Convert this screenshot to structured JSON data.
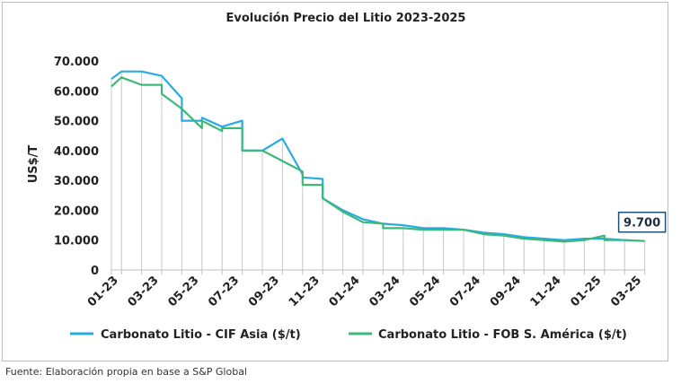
{
  "chart_data": {
    "type": "line",
    "title": "Evolución Precio del Litio 2023-2025",
    "xlabel": "",
    "ylabel": "US$/T",
    "ylim": [
      0,
      70000
    ],
    "y_ticks": [
      0,
      10000,
      20000,
      30000,
      40000,
      50000,
      60000,
      70000
    ],
    "y_tick_labels": [
      "0",
      "10.000",
      "20.000",
      "30.000",
      "40.000",
      "50.000",
      "60.000",
      "70.000"
    ],
    "x_tick_labels": [
      "01-23",
      "03-23",
      "05-23",
      "07-23",
      "09-23",
      "11-23",
      "01-24",
      "03-24",
      "05-24",
      "07-24",
      "09-24",
      "11-24",
      "01-25",
      "03-25"
    ],
    "categories": [
      "01-23",
      "02-23",
      "03-23",
      "04-23",
      "05-23",
      "06-23",
      "07-23",
      "08-23",
      "09-23",
      "10-23",
      "11-23",
      "12-23",
      "01-24",
      "02-24",
      "03-24",
      "04-24",
      "05-24",
      "06-24",
      "07-24",
      "08-24",
      "09-24",
      "10-24",
      "11-24",
      "12-24",
      "01-25",
      "02-25",
      "03-25"
    ],
    "series": [
      {
        "name": "Carbonato Litio - CIF Asia ($/t)",
        "color": "#29abe2",
        "points": [
          [
            0,
            64000
          ],
          [
            0.5,
            66500
          ],
          [
            1.5,
            66500
          ],
          [
            2.5,
            65000
          ],
          [
            3.5,
            57500
          ],
          [
            3.5,
            50000
          ],
          [
            4.5,
            50000
          ],
          [
            4.5,
            51000
          ],
          [
            5.5,
            48000
          ],
          [
            6.5,
            50000
          ],
          [
            6.5,
            40000
          ],
          [
            7.5,
            40000
          ],
          [
            8.5,
            44000
          ],
          [
            9.5,
            32000
          ],
          [
            9.5,
            31000
          ],
          [
            10.5,
            30500
          ],
          [
            10.5,
            24000
          ],
          [
            11.5,
            20000
          ],
          [
            12.5,
            17000
          ],
          [
            13.5,
            15500
          ],
          [
            14.5,
            15000
          ],
          [
            15.5,
            14000
          ],
          [
            16.5,
            14000
          ],
          [
            17.5,
            13500
          ],
          [
            18.5,
            12500
          ],
          [
            19.5,
            12000
          ],
          [
            20.5,
            11000
          ],
          [
            21.5,
            10500
          ],
          [
            22.5,
            10000
          ],
          [
            23.5,
            10500
          ],
          [
            24.5,
            10500
          ],
          [
            25.5,
            10000
          ],
          [
            26.5,
            9700
          ]
        ]
      },
      {
        "name": "Carbonato Litio - FOB S. América ($/t)",
        "color": "#3cb878",
        "points": [
          [
            0,
            61500
          ],
          [
            0.5,
            64500
          ],
          [
            1.5,
            62000
          ],
          [
            2.5,
            62000
          ],
          [
            2.5,
            59000
          ],
          [
            3.5,
            54000
          ],
          [
            4.5,
            47500
          ],
          [
            4.5,
            50000
          ],
          [
            5.5,
            46500
          ],
          [
            5.5,
            47500
          ],
          [
            6.5,
            47500
          ],
          [
            6.5,
            40000
          ],
          [
            7.5,
            40000
          ],
          [
            8.5,
            36500
          ],
          [
            9.5,
            33000
          ],
          [
            9.5,
            28500
          ],
          [
            10.5,
            28500
          ],
          [
            10.5,
            24000
          ],
          [
            11.5,
            19500
          ],
          [
            12.5,
            16000
          ],
          [
            13.5,
            15500
          ],
          [
            13.5,
            14000
          ],
          [
            14.5,
            14000
          ],
          [
            15.5,
            13500
          ],
          [
            16.5,
            13500
          ],
          [
            17.5,
            13500
          ],
          [
            18.5,
            12000
          ],
          [
            19.5,
            11500
          ],
          [
            20.5,
            10500
          ],
          [
            21.5,
            10000
          ],
          [
            22.5,
            9500
          ],
          [
            23.5,
            10000
          ],
          [
            24.5,
            11500
          ],
          [
            24.5,
            10000
          ],
          [
            25.5,
            10000
          ],
          [
            26.5,
            9700
          ]
        ]
      }
    ],
    "annotation": {
      "text": "9.700",
      "value": 9700,
      "position": "last-point"
    },
    "legend_position": "bottom",
    "grid": false
  },
  "source_note": "Fuente: Elaboración propia en base a S&P Global"
}
